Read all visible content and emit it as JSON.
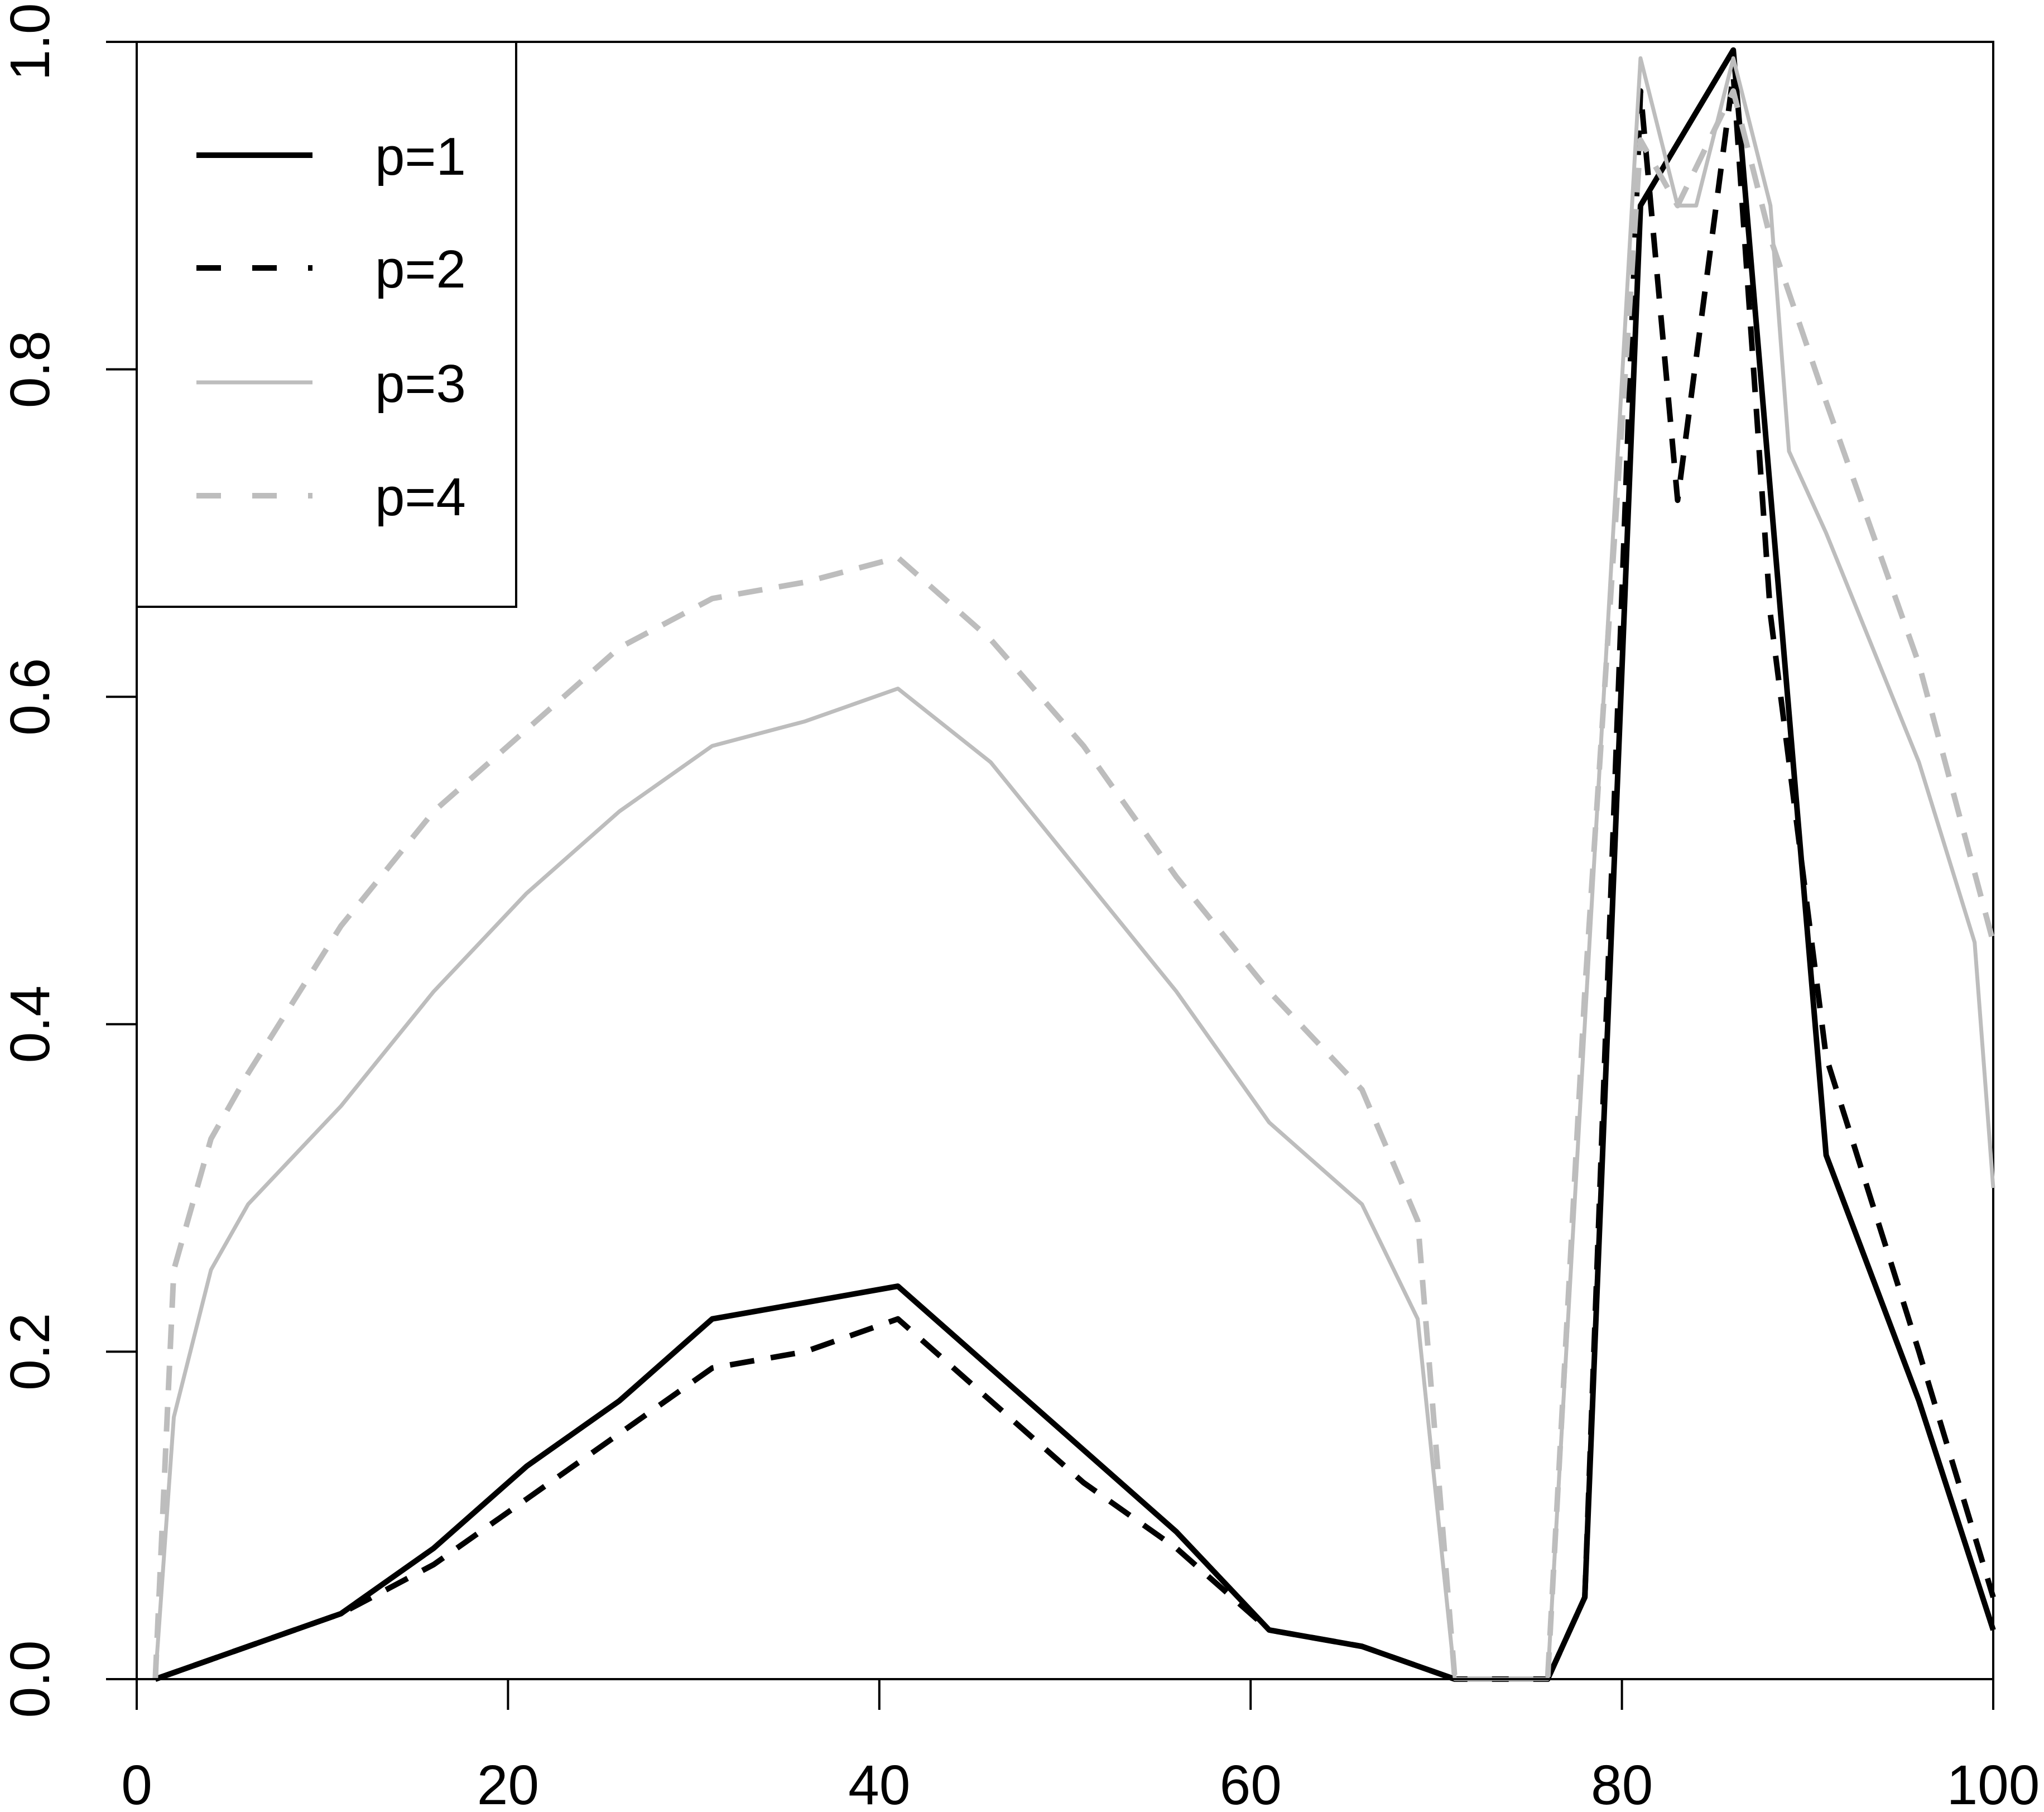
{
  "chart_data": {
    "type": "line",
    "title": "",
    "xlabel": "",
    "ylabel": "",
    "xlim": [
      0,
      100
    ],
    "ylim": [
      0,
      1
    ],
    "x_ticks": [
      0,
      20,
      40,
      60,
      80,
      100
    ],
    "y_ticks": [
      0.0,
      0.2,
      0.4,
      0.6,
      0.8,
      1.0
    ],
    "x_tick_labels": [
      "0",
      "20",
      "40",
      "60",
      "80",
      "100"
    ],
    "y_tick_labels": [
      "0.0",
      "0.2",
      "0.4",
      "0.6",
      "0.8",
      "1.0"
    ],
    "grid": false,
    "legend_position": "top-left",
    "series": [
      {
        "name": "p=1",
        "color": "#000000",
        "style": "solid",
        "thick": true,
        "points": [
          [
            1,
            0
          ],
          [
            6,
            0.02
          ],
          [
            11,
            0.04
          ],
          [
            16,
            0.08
          ],
          [
            21,
            0.13
          ],
          [
            26,
            0.17
          ],
          [
            31,
            0.22
          ],
          [
            36,
            0.23
          ],
          [
            41,
            0.24
          ],
          [
            46,
            0.19
          ],
          [
            51,
            0.14
          ],
          [
            56,
            0.09
          ],
          [
            61,
            0.03
          ],
          [
            66,
            0.02
          ],
          [
            71,
            0
          ],
          [
            76,
            0
          ],
          [
            78,
            0.05
          ],
          [
            81,
            0.9
          ],
          [
            86,
            0.995
          ],
          [
            91,
            0.32
          ],
          [
            96,
            0.17
          ],
          [
            100,
            0.03
          ]
        ]
      },
      {
        "name": "p=2",
        "color": "#000000",
        "style": "dashed",
        "thick": true,
        "points": [
          [
            1,
            0
          ],
          [
            6,
            0.02
          ],
          [
            11,
            0.04
          ],
          [
            16,
            0.07
          ],
          [
            21,
            0.11
          ],
          [
            26,
            0.15
          ],
          [
            31,
            0.19
          ],
          [
            36,
            0.2
          ],
          [
            41,
            0.22
          ],
          [
            46,
            0.17
          ],
          [
            51,
            0.12
          ],
          [
            56,
            0.08
          ],
          [
            61,
            0.03
          ],
          [
            66,
            0.02
          ],
          [
            71,
            0
          ],
          [
            76,
            0
          ],
          [
            78,
            0.05
          ],
          [
            81,
            0.97
          ],
          [
            83,
            0.72
          ],
          [
            86,
            0.98
          ],
          [
            88,
            0.65
          ],
          [
            91,
            0.38
          ],
          [
            96,
            0.2
          ],
          [
            100,
            0.05
          ]
        ]
      },
      {
        "name": "p=3",
        "color": "#bdbdbd",
        "style": "solid",
        "thick": false,
        "points": [
          [
            1,
            0
          ],
          [
            2,
            0.16
          ],
          [
            4,
            0.25
          ],
          [
            6,
            0.29
          ],
          [
            11,
            0.35
          ],
          [
            16,
            0.42
          ],
          [
            21,
            0.48
          ],
          [
            26,
            0.53
          ],
          [
            31,
            0.57
          ],
          [
            36,
            0.585
          ],
          [
            41,
            0.605
          ],
          [
            46,
            0.56
          ],
          [
            51,
            0.49
          ],
          [
            56,
            0.42
          ],
          [
            61,
            0.34
          ],
          [
            66,
            0.29
          ],
          [
            69,
            0.22
          ],
          [
            71,
            0
          ],
          [
            76,
            0
          ],
          [
            78,
            0.4
          ],
          [
            81,
            0.99
          ],
          [
            83,
            0.9
          ],
          [
            84,
            0.9
          ],
          [
            86,
            0.99
          ],
          [
            88,
            0.9
          ],
          [
            89,
            0.75
          ],
          [
            91,
            0.7
          ],
          [
            96,
            0.56
          ],
          [
            99,
            0.45
          ],
          [
            100,
            0.3
          ]
        ]
      },
      {
        "name": "p=4",
        "color": "#bdbdbd",
        "style": "dashed",
        "thick": true,
        "points": [
          [
            1,
            0
          ],
          [
            2,
            0.25
          ],
          [
            4,
            0.33
          ],
          [
            6,
            0.37
          ],
          [
            11,
            0.46
          ],
          [
            16,
            0.53
          ],
          [
            21,
            0.58
          ],
          [
            26,
            0.63
          ],
          [
            31,
            0.66
          ],
          [
            36,
            0.67
          ],
          [
            41,
            0.685
          ],
          [
            46,
            0.635
          ],
          [
            51,
            0.57
          ],
          [
            56,
            0.49
          ],
          [
            61,
            0.42
          ],
          [
            66,
            0.36
          ],
          [
            69,
            0.28
          ],
          [
            71,
            0
          ],
          [
            76,
            0
          ],
          [
            78,
            0.42
          ],
          [
            81,
            0.94
          ],
          [
            83,
            0.9
          ],
          [
            86,
            0.97
          ],
          [
            88,
            0.88
          ],
          [
            91,
            0.78
          ],
          [
            96,
            0.62
          ],
          [
            100,
            0.45
          ]
        ]
      }
    ]
  }
}
